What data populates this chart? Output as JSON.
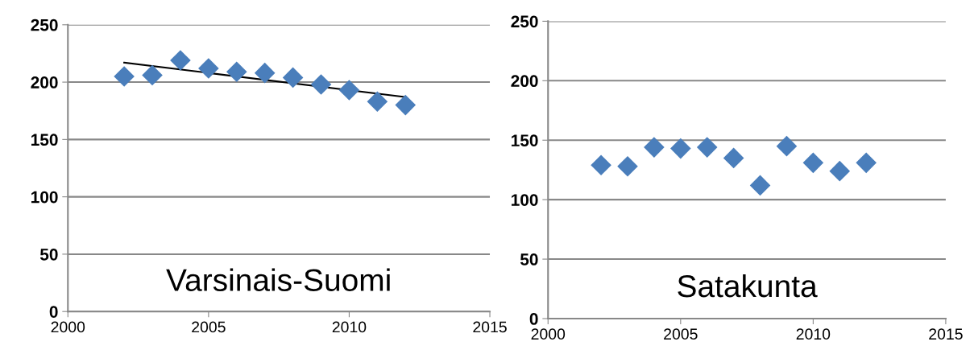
{
  "chart_data": [
    {
      "type": "scatter",
      "annotations": [
        "Varsinais-Suomi"
      ],
      "x": [
        2002,
        2003,
        2004,
        2005,
        2006,
        2007,
        2008,
        2009,
        2010,
        2011,
        2012
      ],
      "series": [
        {
          "color": "#4a7ebb",
          "values": [
            205,
            206,
            219,
            212,
            209,
            208,
            204,
            198,
            193,
            183,
            180
          ]
        },
        {
          "type": "line",
          "color": "#000000",
          "marker": "none",
          "x": [
            2002,
            2012
          ],
          "values": [
            217,
            187
          ]
        }
      ],
      "xlim": [
        2000,
        2015
      ],
      "xticks": [
        2000,
        2005,
        2010,
        2015
      ],
      "ylim": [
        0,
        250
      ],
      "yticks": [
        0,
        50,
        100,
        150,
        200,
        250
      ],
      "grid": "y",
      "marker": "diamond"
    },
    {
      "type": "scatter",
      "annotations": [
        "Satakunta"
      ],
      "x": [
        2002,
        2003,
        2004,
        2005,
        2006,
        2007,
        2008,
        2009,
        2010,
        2011,
        2012
      ],
      "series": [
        {
          "color": "#4a7ebb",
          "values": [
            129,
            128,
            144,
            143,
            144,
            135,
            112,
            145,
            131,
            124,
            131
          ]
        }
      ],
      "xlim": [
        2000,
        2015
      ],
      "xticks": [
        2000,
        2005,
        2010,
        2015
      ],
      "ylim": [
        0,
        250
      ],
      "yticks": [
        0,
        50,
        100,
        150,
        200,
        250
      ],
      "grid": "y",
      "marker": "diamond"
    }
  ]
}
